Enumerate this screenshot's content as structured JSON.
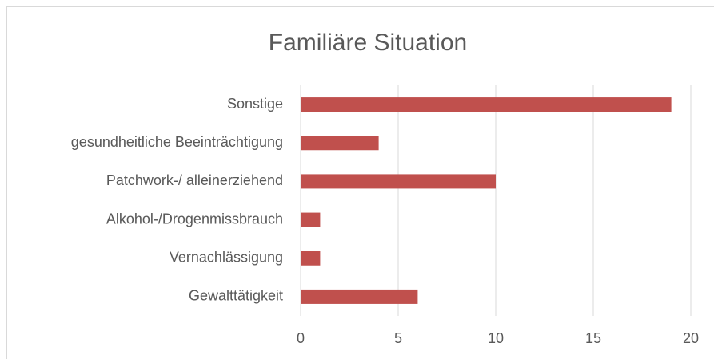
{
  "chart_data": {
    "type": "bar",
    "orientation": "horizontal",
    "title": "Familiäre Situation",
    "categories": [
      "Sonstige",
      "gesundheitliche Beeinträchtigung",
      "Patchwork-/ alleinerziehend",
      "Alkohol-/Drogenmissbrauch",
      "Vernachlässigung",
      "Gewalttätigkeit"
    ],
    "values": [
      19,
      4,
      10,
      1,
      1,
      6
    ],
    "color": "#c0504d",
    "xlim": [
      0,
      20
    ],
    "xticks": [
      0,
      5,
      10,
      15,
      20
    ],
    "grid": true
  }
}
